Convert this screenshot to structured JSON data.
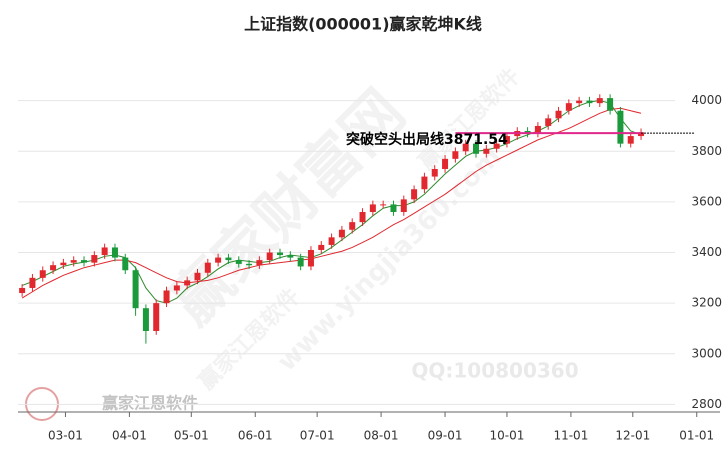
{
  "chart_data": {
    "type": "candlestick",
    "title": "上证指数(000001)赢家乾坤K线",
    "x": [
      38,
      43,
      48,
      53,
      58,
      63,
      68,
      73,
      78,
      83,
      88,
      93,
      98,
      103,
      108,
      113,
      118,
      123,
      128,
      133,
      138,
      143,
      148,
      153,
      158,
      163,
      168,
      173,
      178,
      183,
      188,
      193,
      198,
      203,
      208,
      213,
      218,
      223,
      228,
      233,
      238,
      243,
      248,
      253,
      258,
      263,
      268,
      273,
      278,
      283,
      288,
      293,
      298,
      303,
      308,
      313,
      318,
      323,
      328,
      333,
      338
    ],
    "open": [
      3240,
      3260,
      3300,
      3330,
      3350,
      3360,
      3370,
      3360,
      3390,
      3420,
      3380,
      3330,
      3180,
      3090,
      3200,
      3250,
      3270,
      3290,
      3320,
      3360,
      3380,
      3370,
      3355,
      3350,
      3370,
      3400,
      3390,
      3380,
      3345,
      3410,
      3430,
      3460,
      3490,
      3520,
      3560,
      3590,
      3590,
      3560,
      3610,
      3650,
      3700,
      3730,
      3770,
      3800,
      3830,
      3790,
      3810,
      3830,
      3860,
      3880,
      3870,
      3900,
      3930,
      3960,
      3990,
      4000,
      3990,
      4010,
      3960,
      3830,
      3860
    ],
    "high": [
      3275,
      3315,
      3345,
      3365,
      3375,
      3385,
      3385,
      3405,
      3435,
      3435,
      3395,
      3345,
      3195,
      3215,
      3265,
      3285,
      3305,
      3335,
      3375,
      3395,
      3395,
      3385,
      3370,
      3385,
      3415,
      3415,
      3405,
      3395,
      3425,
      3445,
      3475,
      3505,
      3535,
      3575,
      3605,
      3605,
      3605,
      3625,
      3665,
      3715,
      3745,
      3785,
      3815,
      3845,
      3845,
      3825,
      3845,
      3875,
      3895,
      3895,
      3915,
      3945,
      3975,
      4005,
      4015,
      4015,
      4025,
      4025,
      3975,
      3875,
      3890
    ],
    "low": [
      3225,
      3245,
      3285,
      3315,
      3335,
      3345,
      3345,
      3345,
      3375,
      3365,
      3315,
      3150,
      3040,
      3075,
      3185,
      3235,
      3255,
      3275,
      3305,
      3345,
      3355,
      3340,
      3335,
      3335,
      3355,
      3375,
      3365,
      3330,
      3330,
      3395,
      3415,
      3445,
      3475,
      3505,
      3545,
      3575,
      3545,
      3545,
      3595,
      3635,
      3685,
      3715,
      3755,
      3785,
      3775,
      3775,
      3795,
      3815,
      3845,
      3855,
      3855,
      3885,
      3915,
      3945,
      3975,
      3975,
      3975,
      3945,
      3815,
      3815,
      3845
    ],
    "close": [
      3260,
      3300,
      3330,
      3350,
      3360,
      3370,
      3360,
      3390,
      3420,
      3380,
      3330,
      3180,
      3090,
      3200,
      3250,
      3270,
      3290,
      3320,
      3360,
      3380,
      3370,
      3355,
      3350,
      3370,
      3400,
      3390,
      3380,
      3345,
      3410,
      3430,
      3460,
      3490,
      3520,
      3560,
      3590,
      3590,
      3560,
      3610,
      3650,
      3700,
      3730,
      3770,
      3800,
      3830,
      3790,
      3810,
      3830,
      3860,
      3880,
      3870,
      3900,
      3930,
      3960,
      3990,
      4000,
      3990,
      4010,
      3960,
      3830,
      3860,
      3875
    ],
    "up_color": "#e0282e",
    "down_color": "#1a9a3a",
    "lines": [
      {
        "color": "#2e8b2e",
        "values": [
          3270,
          3285,
          3305,
          3325,
          3345,
          3355,
          3362,
          3370,
          3385,
          3390,
          3380,
          3340,
          3260,
          3210,
          3200,
          3220,
          3260,
          3280,
          3305,
          3335,
          3360,
          3370,
          3365,
          3360,
          3365,
          3380,
          3390,
          3385,
          3380,
          3395,
          3420,
          3450,
          3480,
          3510,
          3545,
          3575,
          3585,
          3585,
          3600,
          3630,
          3670,
          3710,
          3745,
          3780,
          3800,
          3805,
          3815,
          3830,
          3850,
          3865,
          3880,
          3900,
          3930,
          3960,
          3980,
          3995,
          4000,
          3990,
          3930,
          3880,
          3865
        ]
      },
      {
        "color": "#e0282e",
        "values": [
          3220,
          3245,
          3270,
          3290,
          3310,
          3325,
          3340,
          3350,
          3360,
          3370,
          3370,
          3360,
          3340,
          3320,
          3300,
          3285,
          3280,
          3285,
          3290,
          3300,
          3315,
          3330,
          3340,
          3350,
          3355,
          3360,
          3365,
          3370,
          3375,
          3385,
          3395,
          3405,
          3420,
          3440,
          3460,
          3485,
          3510,
          3530,
          3555,
          3580,
          3605,
          3630,
          3660,
          3690,
          3720,
          3745,
          3765,
          3785,
          3805,
          3825,
          3845,
          3860,
          3875,
          3890,
          3910,
          3930,
          3950,
          3965,
          3970,
          3960,
          3950
        ]
      }
    ],
    "annotation": {
      "text": "突破空头出局线3871.54",
      "level": 3871.54,
      "color": "#e0288c"
    },
    "xlim": [
      36,
      369
    ],
    "ylim": [
      2770,
      4200
    ],
    "xticks": [
      {
        "value": 59,
        "label": "03-01"
      },
      {
        "value": 90,
        "label": "04-01"
      },
      {
        "value": 120,
        "label": "05-01"
      },
      {
        "value": 151,
        "label": "06-01"
      },
      {
        "value": 181,
        "label": "07-01"
      },
      {
        "value": 212,
        "label": "08-01"
      },
      {
        "value": 243,
        "label": "09-01"
      },
      {
        "value": 273,
        "label": "10-01"
      },
      {
        "value": 304,
        "label": "11-01"
      },
      {
        "value": 334,
        "label": "12-01"
      },
      {
        "value": 365,
        "label": "01-01"
      }
    ],
    "yticks": [
      2800,
      3000,
      3200,
      3400,
      3600,
      3800,
      4000
    ],
    "grid": true,
    "watermarks": [
      "赢家财富网",
      "www.yingjia360.com",
      "QQ:100800360",
      "赢家江恩软件",
      "赢家江恩软件",
      "赢家江恩软件"
    ]
  }
}
